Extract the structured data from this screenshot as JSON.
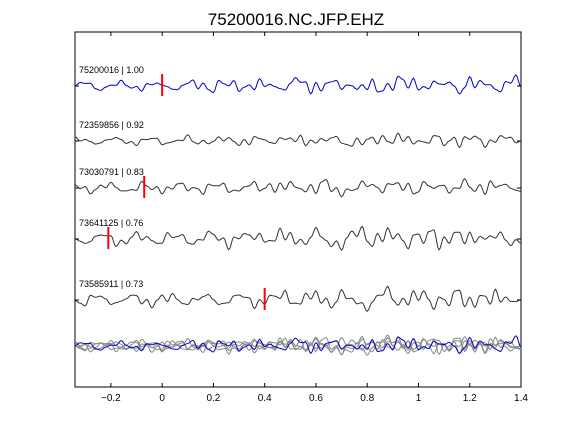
{
  "chart_data": {
    "type": "line",
    "title": "75200016.NC.JFP.EHZ",
    "xlabel": "",
    "ylabel": "",
    "xlim": [
      -0.34,
      1.4
    ],
    "xticks": [
      -0.2,
      0,
      0.2,
      0.4,
      0.6,
      0.8,
      1,
      1.2,
      1.4
    ],
    "xtick_labels": [
      "−0.2",
      "0",
      "0.2",
      "0.4",
      "0.6",
      "0.8",
      "1",
      "1.2",
      "1.4"
    ],
    "grid": false,
    "legend": "none",
    "colors": {
      "primary": "#0000cc",
      "trace": "#333333",
      "overlay": "#888888",
      "pick": "#ff0000"
    },
    "traces": [
      {
        "label": "75200016 | 1.00",
        "pick_time": 0.0,
        "color": "#0000cc"
      },
      {
        "label": "72359856 | 0.92",
        "pick_time": null,
        "color": "#333333"
      },
      {
        "label": "73030791 | 0.83",
        "pick_time": -0.07,
        "color": "#333333"
      },
      {
        "label": "73641125 | 0.76",
        "pick_time": -0.21,
        "color": "#333333"
      },
      {
        "label": "73585911 | 0.73",
        "pick_time": 0.4,
        "color": "#333333"
      }
    ],
    "waveform": {
      "x": [
        -0.34,
        -0.32,
        -0.3,
        -0.28,
        -0.26,
        -0.24,
        -0.22,
        -0.2,
        -0.18,
        -0.16,
        -0.14,
        -0.12,
        -0.1,
        -0.08,
        -0.06,
        -0.04,
        -0.02,
        0,
        0.02,
        0.04,
        0.06,
        0.08,
        0.1,
        0.12,
        0.14,
        0.16,
        0.18,
        0.2,
        0.22,
        0.24,
        0.26,
        0.28,
        0.3,
        0.32,
        0.34,
        0.36,
        0.38,
        0.4,
        0.42,
        0.44,
        0.46,
        0.48,
        0.5,
        0.52,
        0.54,
        0.56,
        0.58,
        0.6,
        0.62,
        0.64,
        0.66,
        0.68,
        0.7,
        0.72,
        0.74,
        0.76,
        0.78,
        0.8,
        0.82,
        0.84,
        0.86,
        0.88,
        0.9,
        0.92,
        0.94,
        0.96,
        0.98,
        1,
        1.02,
        1.04,
        1.06,
        1.08,
        1.1,
        1.12,
        1.14,
        1.16,
        1.18,
        1.2,
        1.22,
        1.24,
        1.26,
        1.28,
        1.3,
        1.32,
        1.34,
        1.36,
        1.38,
        1.4
      ],
      "y": [
        0.05,
        -0.1,
        0.15,
        0.0,
        -0.2,
        0.1,
        -0.05,
        0.2,
        -0.15,
        0.05,
        0.1,
        -0.1,
        0.2,
        -0.05,
        0.1,
        -0.2,
        0.15,
        -0.3,
        0.25,
        0.1,
        -0.35,
        0.3,
        -0.1,
        0.2,
        -0.25,
        0.35,
        0.0,
        -0.3,
        0.4,
        0.1,
        -0.35,
        0.3,
        -0.2,
        0.15,
        0.35,
        -0.25,
        0.3,
        -0.4,
        0.2,
        -0.1,
        0.3,
        -0.2,
        0.1,
        0.9,
        -0.1,
        0.3,
        -0.5,
        0.6,
        -0.2,
        0.4,
        -0.1,
        0.5,
        -0.6,
        0.2,
        0.7,
        -0.3,
        0.1,
        -0.6,
        0.2,
        -0.7,
        -0.3,
        0.5,
        0.0,
        1.0,
        0.3,
        -0.4,
        0.6,
        -0.2,
        0.5,
        -0.3,
        0.7,
        -0.1,
        -0.4,
        0.6,
        0.1,
        -0.6,
        0.3,
        0.8,
        -0.5,
        0.4,
        -0.2,
        0.6,
        0.0,
        -0.6,
        0.7,
        -0.2,
        0.9,
        0.0
      ]
    }
  }
}
